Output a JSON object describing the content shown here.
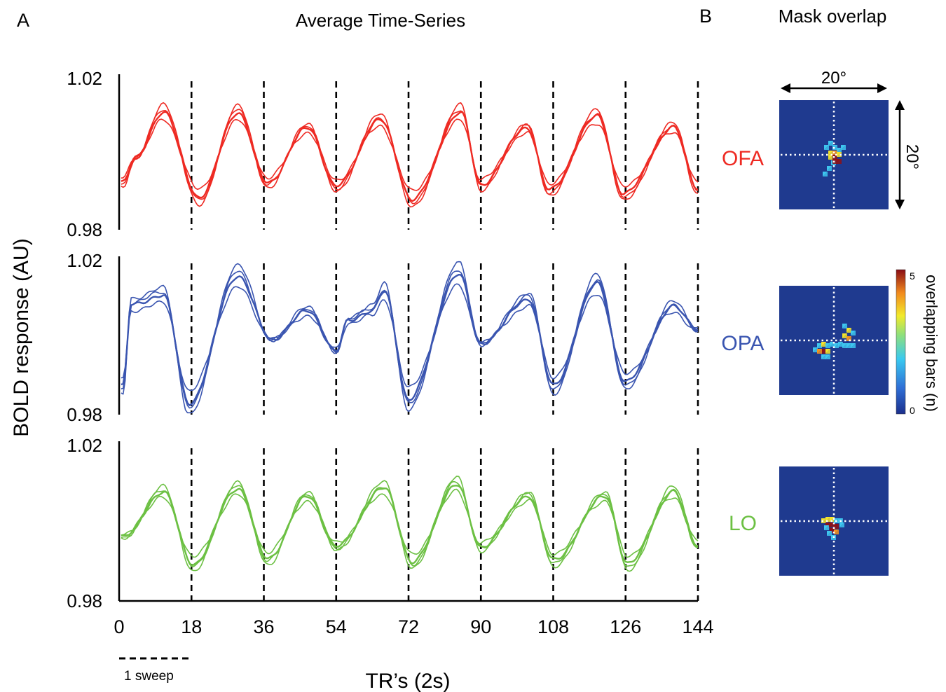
{
  "panel_a": {
    "letter": "A",
    "title": "Average Time-Series",
    "ylabel": "BOLD response (AU)",
    "xlabel": "TR’s (2s)",
    "sweep_label": "1 sweep"
  },
  "panel_b": {
    "letter": "B",
    "title": "Mask overlap",
    "extent_h": "20°",
    "extent_v": "20°",
    "colorbar_label": "overlapping bars (n)",
    "colorbar_ticks": [
      "5",
      "0"
    ],
    "regions": [
      "OFA",
      "OPA",
      "LO"
    ]
  },
  "colors": {
    "OFA": "#ee2a23",
    "OPA": "#3a55b0",
    "LO": "#6cc043",
    "mask_bg": "#1f3a8f"
  },
  "chart_data": [
    {
      "type": "line",
      "region": "OFA",
      "ylim": [
        0.98,
        1.02
      ],
      "yticks": [
        "1.02",
        "0.98"
      ],
      "xlim": [
        0,
        144
      ],
      "sweep_boundaries": [
        18,
        36,
        54,
        72,
        90,
        108,
        126,
        144
      ],
      "peaks": [
        {
          "x": 11,
          "y": 1.011
        },
        {
          "x": 29.5,
          "y": 1.011
        },
        {
          "x": 47,
          "y": 1.007
        },
        {
          "x": 65,
          "y": 1.009
        },
        {
          "x": 85,
          "y": 1.011
        },
        {
          "x": 101.5,
          "y": 1.007
        },
        {
          "x": 119,
          "y": 1.01
        },
        {
          "x": 138,
          "y": 1.007
        }
      ],
      "troughs": [
        {
          "x": 1,
          "y": 0.9925
        },
        {
          "x": 20,
          "y": 0.9885
        },
        {
          "x": 37,
          "y": 0.9925
        },
        {
          "x": 54,
          "y": 0.9915
        },
        {
          "x": 73,
          "y": 0.988
        },
        {
          "x": 90,
          "y": 0.992
        },
        {
          "x": 107,
          "y": 0.9905
        },
        {
          "x": 125.5,
          "y": 0.9895
        },
        {
          "x": 144,
          "y": 0.991
        }
      ],
      "shoulders": [
        {
          "x": 4,
          "y": 0.999
        }
      ]
    },
    {
      "type": "line",
      "region": "OPA",
      "ylim": [
        0.98,
        1.02
      ],
      "yticks": [
        "1.02",
        "0.98"
      ],
      "xlim": [
        0,
        144
      ],
      "sweep_boundaries": [
        18,
        36,
        54,
        72,
        90,
        108,
        126,
        144
      ],
      "peaks": [
        {
          "x": 29.5,
          "y": 1.016
        },
        {
          "x": 47,
          "y": 1.007
        },
        {
          "x": 66,
          "y": 1.012
        },
        {
          "x": 84.5,
          "y": 1.0165
        },
        {
          "x": 102,
          "y": 1.01
        },
        {
          "x": 119,
          "y": 1.014
        },
        {
          "x": 138,
          "y": 1.008
        }
      ],
      "troughs": [
        {
          "x": 1,
          "y": 0.9875
        },
        {
          "x": 17.5,
          "y": 0.983
        },
        {
          "x": 38,
          "y": 0.9995
        },
        {
          "x": 54,
          "y": 0.9965
        },
        {
          "x": 72,
          "y": 0.984
        },
        {
          "x": 90,
          "y": 0.9985
        },
        {
          "x": 108,
          "y": 0.9875
        },
        {
          "x": 126,
          "y": 0.9885
        },
        {
          "x": 144,
          "y": 1.002
        }
      ],
      "plateaus": [
        {
          "x_start": 3,
          "x_end": 11,
          "y_start": 1.0085,
          "y_end": 1.011
        },
        {
          "x_start": 57,
          "x_end": 63,
          "y_start": 1.0045,
          "y_end": 1.007
        }
      ]
    },
    {
      "type": "line",
      "region": "LO",
      "ylim": [
        0.98,
        1.02
      ],
      "yticks": [
        "1.02",
        "0.98"
      ],
      "xlim": [
        0,
        144
      ],
      "xticks": [
        "0",
        "18",
        "36",
        "54",
        "72",
        "90",
        "108",
        "126",
        "144"
      ],
      "sweep_boundaries": [
        18,
        36,
        54,
        72,
        90,
        108,
        126,
        144
      ],
      "peaks": [
        {
          "x": 11,
          "y": 1.008
        },
        {
          "x": 29.5,
          "y": 1.009
        },
        {
          "x": 47,
          "y": 1.007
        },
        {
          "x": 66,
          "y": 1.009
        },
        {
          "x": 84,
          "y": 1.01
        },
        {
          "x": 102,
          "y": 1.007
        },
        {
          "x": 121,
          "y": 1.007
        },
        {
          "x": 138,
          "y": 1.008
        }
      ],
      "troughs": [
        {
          "x": 1,
          "y": 0.9965
        },
        {
          "x": 18.5,
          "y": 0.9895
        },
        {
          "x": 37,
          "y": 0.991
        },
        {
          "x": 54,
          "y": 0.994
        },
        {
          "x": 73,
          "y": 0.99
        },
        {
          "x": 90,
          "y": 0.994
        },
        {
          "x": 108,
          "y": 0.9905
        },
        {
          "x": 126.5,
          "y": 0.9895
        },
        {
          "x": 144,
          "y": 0.9945
        }
      ]
    }
  ]
}
